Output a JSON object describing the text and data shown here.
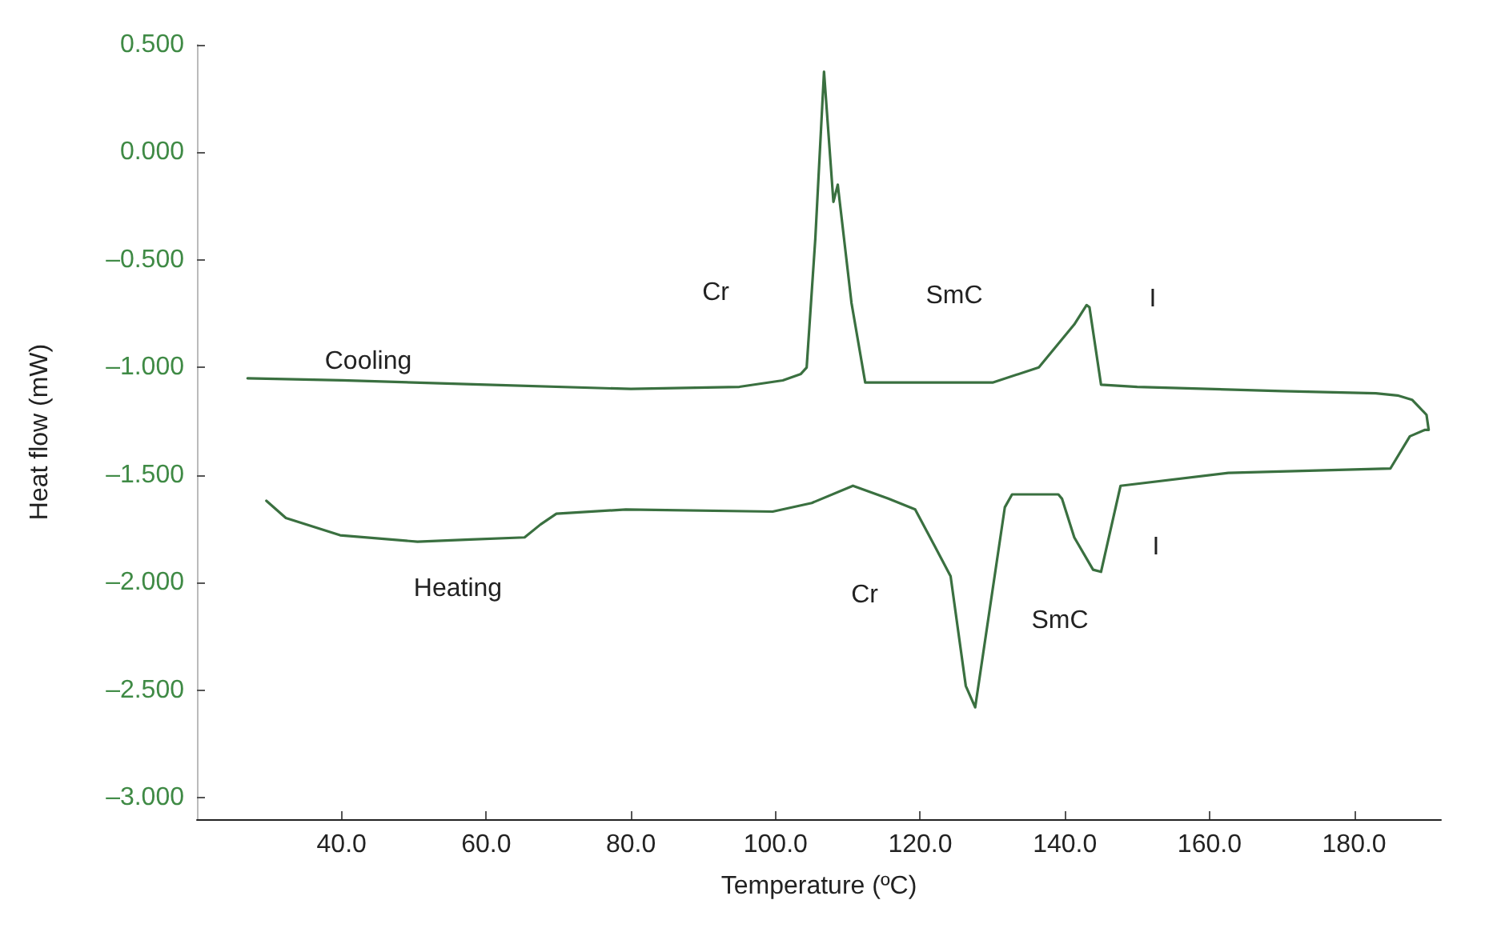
{
  "chart_data": {
    "type": "line",
    "xlabel": "Temperature (ºC)",
    "ylabel": "Heat flow (mW)",
    "xlim": [
      20,
      192
    ],
    "ylim": [
      -3.1,
      0.5
    ],
    "xticks": [
      {
        "value": 40,
        "label": "40.0"
      },
      {
        "value": 60,
        "label": "60.0"
      },
      {
        "value": 80,
        "label": "80.0"
      },
      {
        "value": 100,
        "label": "100.0"
      },
      {
        "value": 120,
        "label": "120.0"
      },
      {
        "value": 140,
        "label": "140.0"
      },
      {
        "value": 160,
        "label": "160.0"
      },
      {
        "value": 180,
        "label": "180.0"
      }
    ],
    "yticks": [
      {
        "value": 0.5,
        "label": "0.500"
      },
      {
        "value": 0,
        "label": "0.000"
      },
      {
        "value": -0.5,
        "label": "–0.500"
      },
      {
        "value": -1,
        "label": "–1.000"
      },
      {
        "value": -1.5,
        "label": "–1.500"
      },
      {
        "value": -2,
        "label": "–2.000"
      },
      {
        "value": -2.5,
        "label": "–2.500"
      },
      {
        "value": -3,
        "label": "–3.000"
      }
    ],
    "grid": false,
    "marker": "none",
    "line_style": "solid",
    "series": [
      {
        "color": "#3a7040",
        "x": [
          27,
          40,
          60,
          80,
          95,
          101,
          103.5,
          104.3,
          105.5,
          106.7,
          108.0,
          108.6,
          110.5,
          112.4,
          120,
          130,
          136.4,
          141.3,
          143.0,
          143.4,
          145.0,
          150,
          170,
          183,
          186,
          188,
          190,
          190.3,
          189.8,
          187.7,
          185.0,
          162.6,
          147.7,
          145.0,
          143.9,
          141.3,
          139.6,
          139.1,
          132.7,
          131.7,
          127.6,
          126.3,
          124.2,
          122,
          119.3,
          115.6,
          110.7,
          105,
          99.6,
          79.3,
          69.7,
          67.5,
          65.3,
          57.8,
          50.5,
          39.8,
          32.3,
          29.6
        ],
        "values": [
          -1.05,
          -1.06,
          -1.08,
          -1.1,
          -1.09,
          -1.06,
          -1.03,
          -1.0,
          -0.4,
          0.375,
          -0.23,
          -0.15,
          -0.7,
          -1.07,
          -1.07,
          -1.07,
          -1.0,
          -0.8,
          -0.71,
          -0.72,
          -1.08,
          -1.09,
          -1.11,
          -1.12,
          -1.13,
          -1.15,
          -1.22,
          -1.29,
          -1.29,
          -1.32,
          -1.47,
          -1.49,
          -1.55,
          -1.95,
          -1.94,
          -1.79,
          -1.61,
          -1.59,
          -1.59,
          -1.65,
          -2.58,
          -2.48,
          -1.97,
          -1.83,
          -1.66,
          -1.61,
          -1.55,
          -1.63,
          -1.67,
          -1.66,
          -1.68,
          -1.73,
          -1.79,
          -1.8,
          -1.81,
          -1.78,
          -1.7,
          -1.62
        ]
      }
    ],
    "annotations": [
      "Cooling",
      "Cr",
      "SmC",
      "I",
      "Heating",
      "Cr",
      "SmC",
      "I"
    ]
  }
}
